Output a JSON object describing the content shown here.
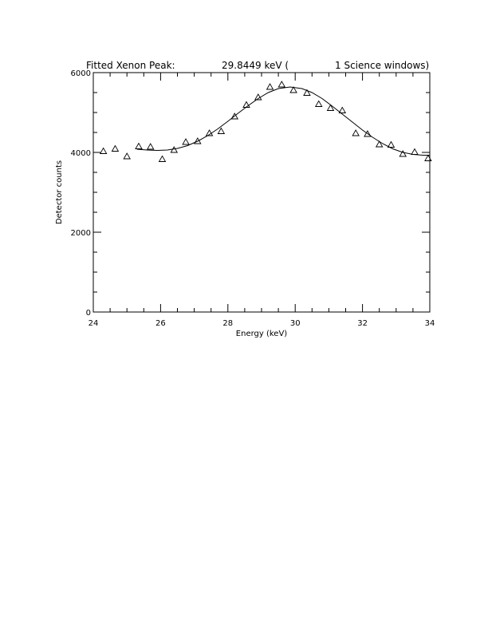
{
  "chart_data": {
    "type": "scatter",
    "title": {
      "part1": "Fitted Xenon Peak:",
      "part2": "29.8449 keV (",
      "part3": "1 Science windows)"
    },
    "xlabel": "Energy (keV)",
    "ylabel": "Detector counts",
    "xlim": [
      24,
      34
    ],
    "ylim": [
      0,
      6000
    ],
    "x_major_ticks": [
      24,
      26,
      28,
      30,
      32,
      34
    ],
    "x_tick_labels": [
      "24",
      "26",
      "28",
      "30",
      "32",
      "34"
    ],
    "y_major_ticks": [
      0,
      2000,
      4000,
      6000
    ],
    "y_tick_labels": [
      "0",
      "2000",
      "4000",
      "6000"
    ],
    "grid": false,
    "series": [
      {
        "marker": "triangle",
        "x": [
          24.3,
          24.65,
          25.0,
          25.35,
          25.7,
          26.05,
          26.4,
          26.75,
          27.1,
          27.45,
          27.8,
          28.2,
          28.55,
          28.9,
          29.25,
          29.6,
          29.95,
          30.35,
          30.7,
          31.05,
          31.4,
          31.8,
          32.15,
          32.5,
          32.85,
          33.2,
          33.55,
          33.95
        ],
        "y": [
          4030,
          4090,
          3900,
          4150,
          4140,
          3830,
          4060,
          4260,
          4280,
          4480,
          4530,
          4900,
          5190,
          5380,
          5640,
          5700,
          5560,
          5490,
          5210,
          5110,
          5050,
          4480,
          4460,
          4200,
          4190,
          3960,
          4010,
          3850
        ]
      },
      {
        "style": "line",
        "x": [
          25.3,
          25.6,
          25.9,
          26.2,
          26.5,
          26.8,
          27.1,
          27.4,
          27.7,
          28.0,
          28.3,
          28.6,
          28.9,
          29.2,
          29.5,
          29.85,
          30.2,
          30.5,
          30.8,
          31.1,
          31.4,
          31.7,
          32.0,
          32.3,
          32.6,
          32.9,
          33.2,
          33.5,
          33.8,
          34.0
        ],
        "y": [
          4080,
          4060,
          4050,
          4060,
          4100,
          4170,
          4280,
          4420,
          4590,
          4780,
          4980,
          5170,
          5350,
          5500,
          5600,
          5640,
          5600,
          5500,
          5350,
          5160,
          4960,
          4760,
          4560,
          4380,
          4220,
          4090,
          4000,
          3950,
          3930,
          3930
        ]
      }
    ]
  }
}
